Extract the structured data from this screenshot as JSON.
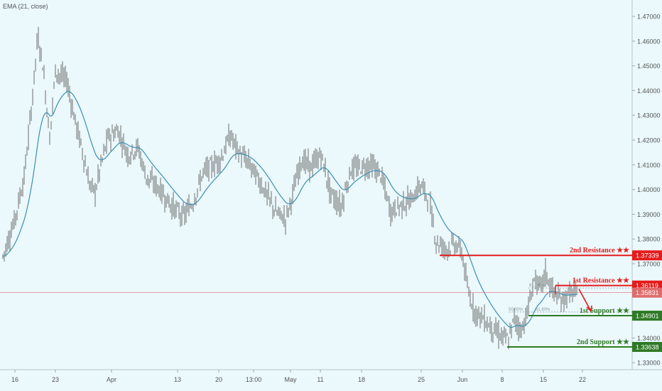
{
  "indicator_label": "EMA (21, close)",
  "colors": {
    "background": "#ebf8fc",
    "candle": "#6e6e6e",
    "ema": "#3d8fb0",
    "resistance": "#e51b1b",
    "support": "#2f7a26",
    "current": "#e06b6b",
    "fib": "#8a9aa0"
  },
  "chart_data": {
    "type": "line",
    "title": "",
    "xlabel": "",
    "ylabel": "",
    "ylim": [
      1.3258,
      1.4744
    ],
    "y_ticks": [
      "1.47000",
      "1.46000",
      "1.45000",
      "1.44000",
      "1.43000",
      "1.42000",
      "1.41000",
      "1.40000",
      "1.39000",
      "1.38000",
      "1.37000",
      "1.36000",
      "1.35000",
      "1.34000",
      "1.33000"
    ],
    "x_ticks": [
      "16",
      "23",
      "Apr",
      "13",
      "20",
      "13:00",
      "May",
      "11",
      "18",
      "25",
      "Jun",
      "8",
      "15",
      "22"
    ],
    "current_price": "1.35831",
    "series": [
      {
        "x": [
          "16",
          "23",
          "Apr",
          "13",
          "20",
          "13:00",
          "May",
          "11",
          "18",
          "25",
          "Jun",
          "8",
          "15",
          "22"
        ],
        "y": [
          1.372,
          1.452,
          1.416,
          1.392,
          1.412,
          1.405,
          1.391,
          1.412,
          1.405,
          1.402,
          1.372,
          1.338,
          1.358,
          1.359
        ]
      }
    ],
    "levels": [
      {
        "label": "2nd Resistance ★★",
        "price": "1.37339",
        "kind": "resistance"
      },
      {
        "label": "1st Resistance ★★",
        "price": "1.36119",
        "kind": "resistance"
      },
      {
        "label": "1st Support ★★",
        "price": "1.34901",
        "kind": "support"
      },
      {
        "label": "2nd Support ★★",
        "price": "1.33638",
        "kind": "support"
      }
    ],
    "fib_labels": [
      {
        "text": "61.80%"
      },
      {
        "text": "50.00%"
      },
      {
        "text": "61.80%"
      }
    ]
  }
}
